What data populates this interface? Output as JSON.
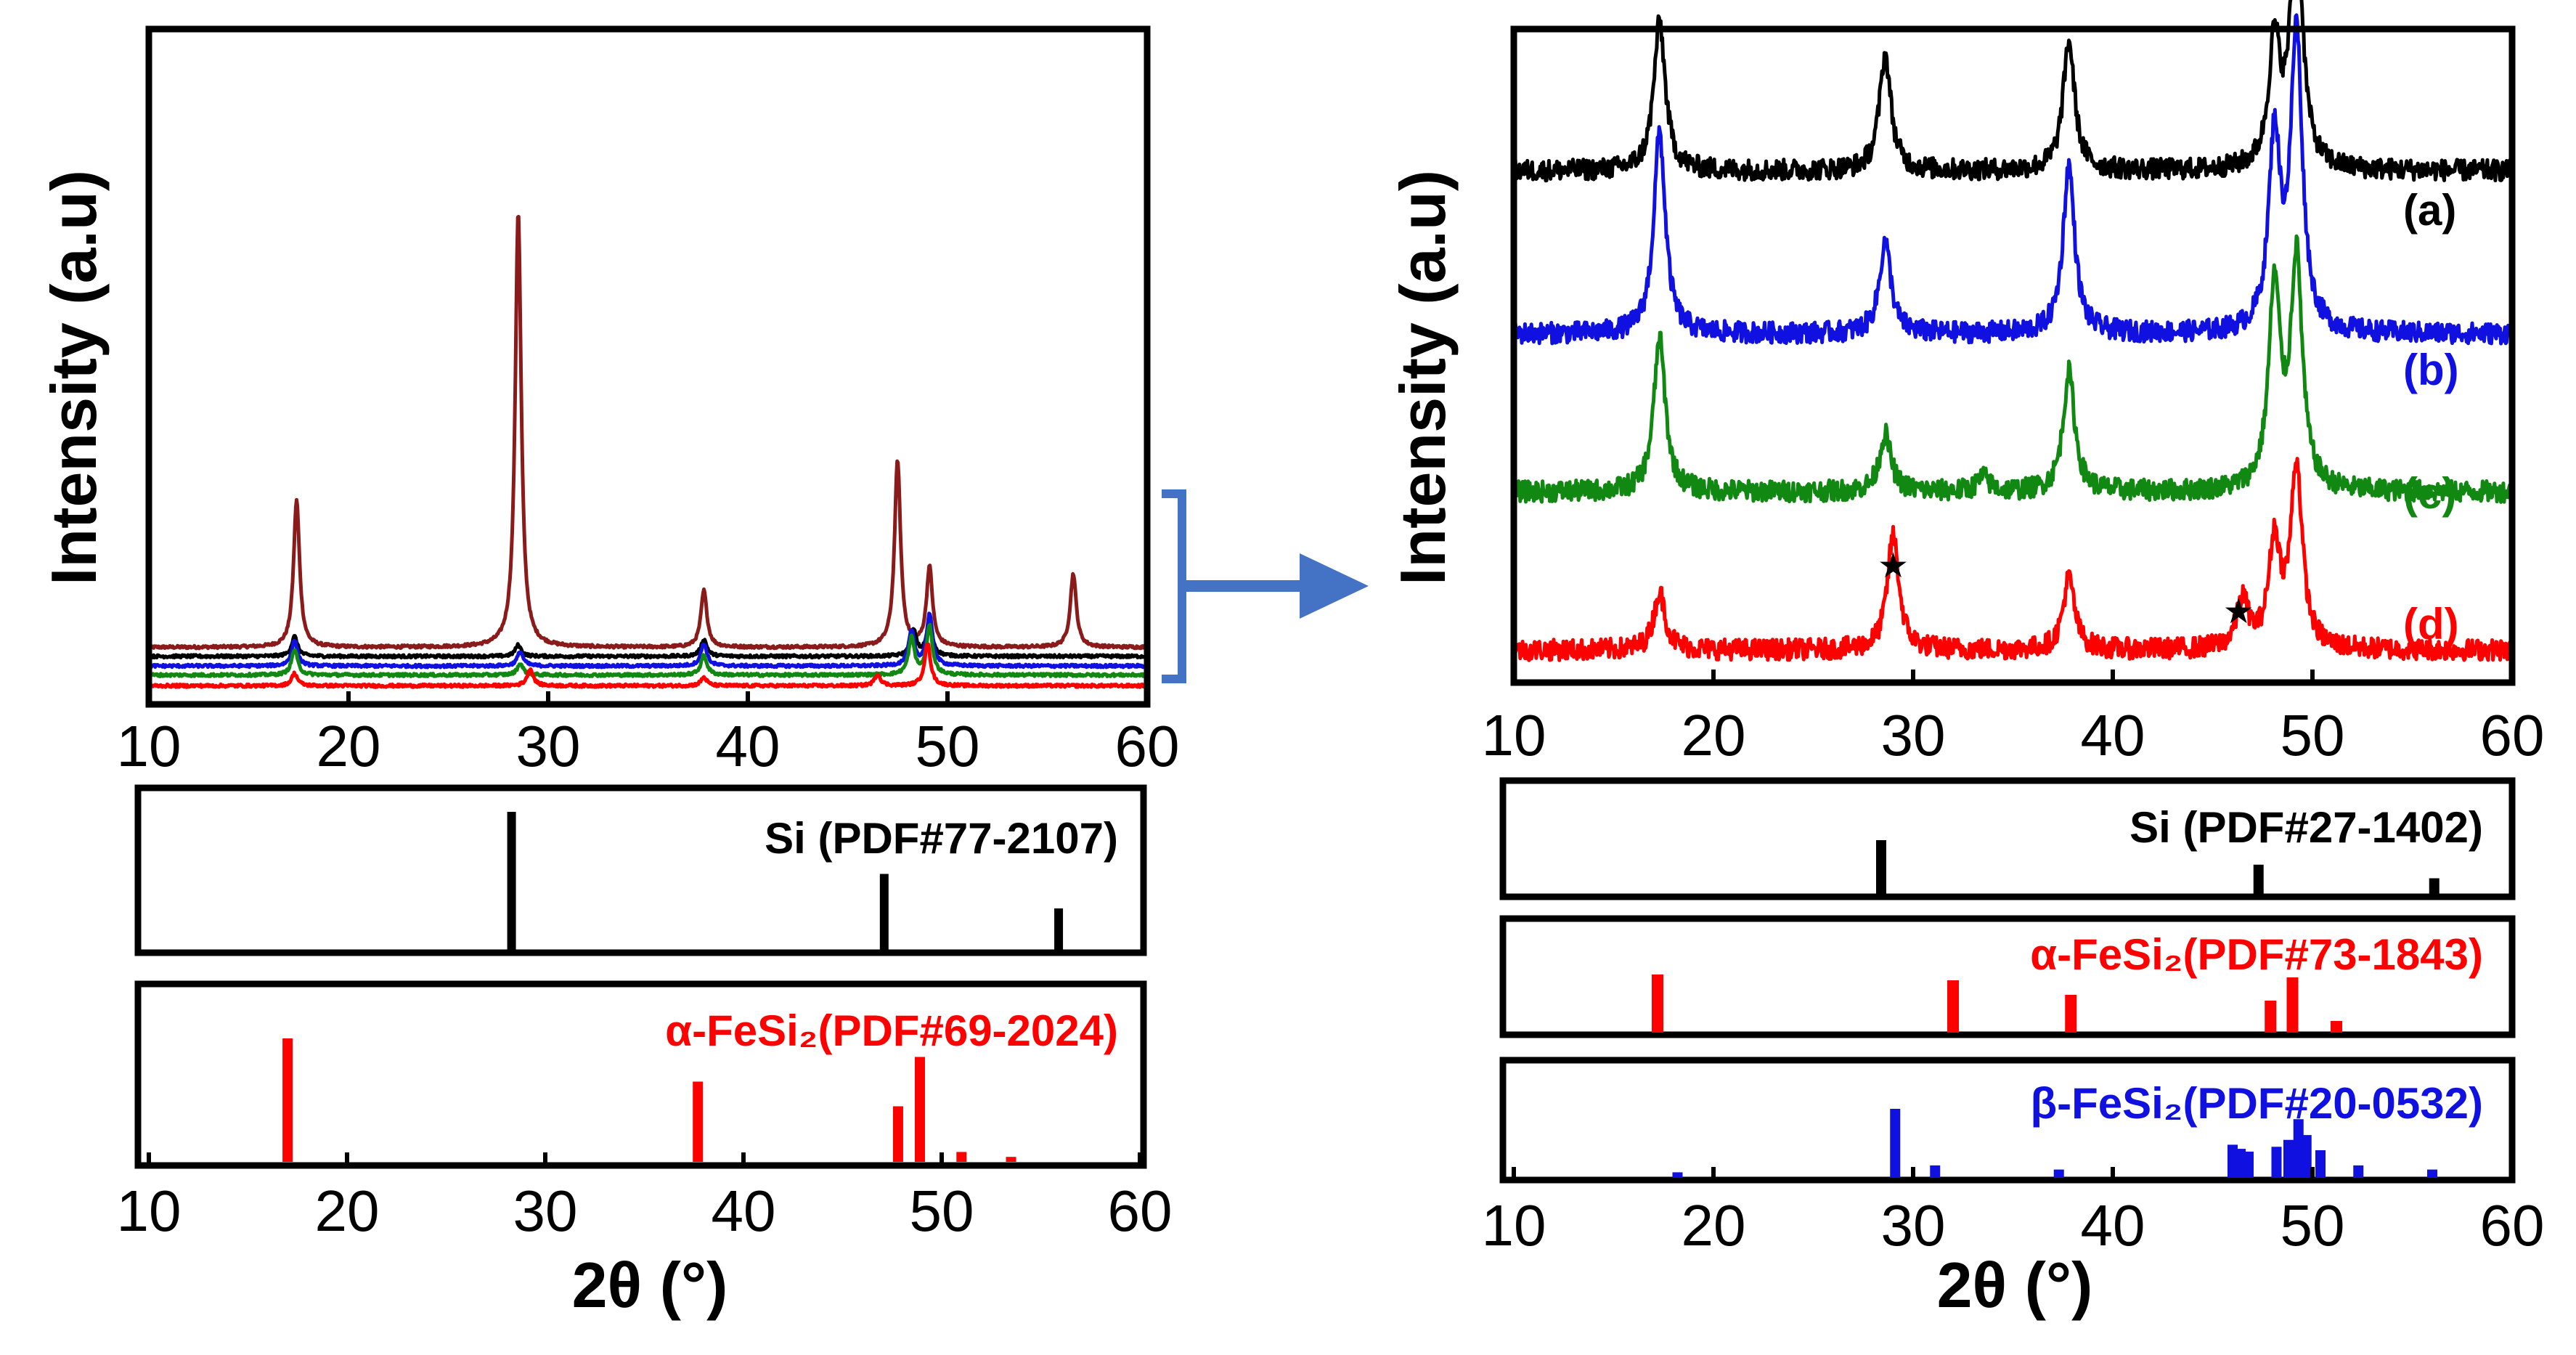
{
  "chart_data": [
    {
      "type": "line",
      "panel": "left-top",
      "xlabel": "",
      "ylabel": "Intensity (a.u)",
      "xlim": [
        10,
        60
      ],
      "x_ticks": [
        "10",
        "20",
        "30",
        "40",
        "50",
        "60"
      ],
      "series": [
        {
          "color": "#8B1A1A",
          "baseline": 0.88,
          "peaks": [
            [
              17.4,
              2.6
            ],
            [
              28.5,
              7.7
            ],
            [
              37.8,
              1.0
            ],
            [
              47.5,
              3.3
            ],
            [
              49.1,
              1.4
            ],
            [
              56.3,
              1.3
            ]
          ]
        },
        {
          "color": "#000000",
          "baseline": 0.72,
          "peaks": [
            [
              17.3,
              0.35
            ],
            [
              28.5,
              0.2
            ],
            [
              37.8,
              0.3
            ],
            [
              48.3,
              0.45
            ],
            [
              49.1,
              0.6
            ]
          ]
        },
        {
          "color": "#1010E0",
          "baseline": 0.55,
          "peaks": [
            [
              17.3,
              0.45
            ],
            [
              28.6,
              0.25
            ],
            [
              37.8,
              0.4
            ],
            [
              48.2,
              0.6
            ],
            [
              49.1,
              0.9
            ]
          ]
        },
        {
          "color": "#118811",
          "baseline": 0.39,
          "peaks": [
            [
              17.3,
              0.45
            ],
            [
              28.6,
              0.2
            ],
            [
              37.8,
              0.35
            ],
            [
              48.2,
              0.65
            ],
            [
              49.1,
              0.85
            ]
          ]
        },
        {
          "color": "#FF0000",
          "baseline": 0.2,
          "peaks": [
            [
              17.3,
              0.22
            ],
            [
              29.1,
              0.3
            ],
            [
              37.8,
              0.15
            ],
            [
              46.5,
              0.2
            ],
            [
              49.0,
              0.75
            ]
          ]
        }
      ]
    },
    {
      "type": "bar",
      "panel": "left-reference-si",
      "label": "Si (PDF#77-2107)",
      "xlim": [
        10,
        60
      ],
      "x": [
        28.3,
        47.1,
        55.9
      ],
      "values": [
        100,
        55,
        30
      ]
    },
    {
      "type": "bar",
      "panel": "left-reference-fesi2",
      "label": "α-FeSi₂(PDF#69-2024)",
      "xlim": [
        10,
        60
      ],
      "xlabel": "2θ (°)",
      "x_ticks": [
        "10",
        "20",
        "30",
        "40",
        "50",
        "60"
      ],
      "x": [
        17.0,
        37.7,
        47.8,
        48.9,
        51.0,
        53.5
      ],
      "values": [
        100,
        65,
        45,
        85,
        8,
        4
      ]
    },
    {
      "type": "line",
      "panel": "right-top",
      "xlabel": "",
      "ylabel": "Intensity (a.u)",
      "xlim": [
        10,
        60
      ],
      "x_ticks": [
        "10",
        "20",
        "30",
        "40",
        "50",
        "60"
      ],
      "series": [
        {
          "name": "(a)",
          "color": "#000000",
          "baseline": 5.3,
          "peaks": [
            [
              17.3,
              1.55
            ],
            [
              28.6,
              1.2
            ],
            [
              37.8,
              1.35
            ],
            [
              48.1,
              1.3
            ],
            [
              49.2,
              2.7
            ]
          ]
        },
        {
          "name": "(b)",
          "color": "#1010E0",
          "baseline": 3.6,
          "peaks": [
            [
              17.3,
              2.1
            ],
            [
              28.6,
              0.95
            ],
            [
              37.8,
              1.75
            ],
            [
              48.1,
              2.0
            ],
            [
              49.2,
              3.1
            ]
          ]
        },
        {
          "name": "(c)",
          "color": "#118811",
          "baseline": 1.95,
          "peaks": [
            [
              17.3,
              1.6
            ],
            [
              28.6,
              0.6
            ],
            [
              33.5,
              0.15
            ],
            [
              37.8,
              1.25
            ],
            [
              48.1,
              2.1
            ],
            [
              49.2,
              2.4
            ]
          ]
        },
        {
          "name": "(d)",
          "color": "#FF0000",
          "baseline": 0.3,
          "peaks": [
            [
              17.3,
              0.6
            ],
            [
              29.0,
              1.2
            ],
            [
              37.8,
              0.75
            ],
            [
              46.5,
              0.5
            ],
            [
              48.1,
              1.1
            ],
            [
              49.2,
              1.9
            ]
          ]
        }
      ],
      "annotations": [
        {
          "text": "★",
          "x": 29.0
        },
        {
          "text": "★",
          "x": 46.3
        }
      ]
    },
    {
      "type": "bar",
      "panel": "right-reference-si",
      "label": "Si (PDF#27-1402)",
      "xlim": [
        10,
        60
      ],
      "x": [
        28.4,
        47.3,
        56.1
      ],
      "values": [
        100,
        55,
        30
      ]
    },
    {
      "type": "bar",
      "panel": "right-reference-alpha-fesi2",
      "label": "α-FeSi₂(PDF#73-1843)",
      "xlim": [
        10,
        60
      ],
      "x": [
        17.2,
        32.0,
        37.9,
        47.9,
        49.0,
        51.2
      ],
      "values": [
        100,
        90,
        65,
        55,
        95,
        20
      ]
    },
    {
      "type": "bar",
      "panel": "right-reference-beta-fesi2",
      "label": "β-FeSi₂(PDF#20-0532)",
      "xlabel": "2θ (°)",
      "xlim": [
        10,
        60
      ],
      "x_ticks": [
        "10",
        "20",
        "30",
        "40",
        "50",
        "60"
      ],
      "x": [
        18.2,
        29.1,
        31.1,
        37.3,
        46.0,
        46.4,
        46.8,
        48.2,
        48.8,
        49.3,
        49.7,
        50.4,
        52.3,
        56.0
      ],
      "values": [
        8,
        100,
        18,
        12,
        48,
        42,
        38,
        45,
        55,
        85,
        62,
        40,
        18,
        12
      ]
    }
  ],
  "connector": {
    "bracket_color": "#4472C4",
    "arrow_color": "#4472C4"
  }
}
